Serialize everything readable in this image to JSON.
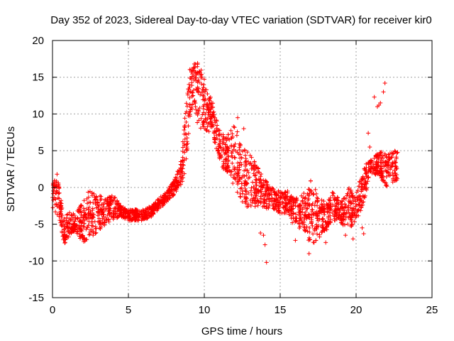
{
  "chart_data": {
    "type": "scatter",
    "title": "Day 352 of 2023, Sidereal Day-to-day VTEC variation (SDTVAR) for receiver kir0",
    "xlabel": "GPS time / hours",
    "ylabel": "SDTVAR / TECUs",
    "xlim": [
      0,
      25
    ],
    "ylim": [
      -15,
      20
    ],
    "x_ticks": [
      0,
      5,
      10,
      15,
      20,
      25
    ],
    "y_ticks": [
      -15,
      -10,
      -5,
      0,
      5,
      10,
      15,
      20
    ],
    "grid": true,
    "marker": "+",
    "series_color": "#ff0000",
    "series": [
      {
        "name": "SDTVAR",
        "envelope": [
          {
            "x": 0.0,
            "lo": -3.0,
            "hi": 0.5
          },
          {
            "x": 0.3,
            "lo": -4.0,
            "hi": 1.5
          },
          {
            "x": 0.5,
            "lo": -5.0,
            "hi": 0.5
          },
          {
            "x": 0.7,
            "lo": -8.0,
            "hi": -4.5
          },
          {
            "x": 1.0,
            "lo": -7.0,
            "hi": -3.0
          },
          {
            "x": 1.5,
            "lo": -6.0,
            "hi": -3.5
          },
          {
            "x": 2.0,
            "lo": -7.5,
            "hi": -2.0
          },
          {
            "x": 2.5,
            "lo": -7.0,
            "hi": 0.0
          },
          {
            "x": 3.0,
            "lo": -6.0,
            "hi": -1.0
          },
          {
            "x": 3.5,
            "lo": -5.0,
            "hi": -1.5
          },
          {
            "x": 4.0,
            "lo": -4.5,
            "hi": -1.0
          },
          {
            "x": 4.5,
            "lo": -4.0,
            "hi": -2.5
          },
          {
            "x": 5.0,
            "lo": -4.5,
            "hi": -3.0
          },
          {
            "x": 6.0,
            "lo": -4.5,
            "hi": -3.0
          },
          {
            "x": 6.5,
            "lo": -4.0,
            "hi": -2.5
          },
          {
            "x": 7.0,
            "lo": -3.0,
            "hi": -1.5
          },
          {
            "x": 7.5,
            "lo": -2.0,
            "hi": -0.5
          },
          {
            "x": 8.0,
            "lo": -1.0,
            "hi": 1.0
          },
          {
            "x": 8.5,
            "lo": 0.0,
            "hi": 4.0
          },
          {
            "x": 8.8,
            "lo": 3.0,
            "hi": 12.0
          },
          {
            "x": 9.0,
            "lo": 8.0,
            "hi": 16.5
          },
          {
            "x": 9.3,
            "lo": 12.0,
            "hi": 16.8
          },
          {
            "x": 9.6,
            "lo": 8.0,
            "hi": 17.0
          },
          {
            "x": 10.0,
            "lo": 7.0,
            "hi": 15.0
          },
          {
            "x": 10.5,
            "lo": 8.0,
            "hi": 12.0
          },
          {
            "x": 11.0,
            "lo": 3.0,
            "hi": 8.0
          },
          {
            "x": 11.5,
            "lo": 2.0,
            "hi": 7.0
          },
          {
            "x": 12.0,
            "lo": 0.0,
            "hi": 8.5
          },
          {
            "x": 12.5,
            "lo": -2.0,
            "hi": 6.0
          },
          {
            "x": 13.0,
            "lo": -3.0,
            "hi": 5.0
          },
          {
            "x": 13.5,
            "lo": -2.5,
            "hi": 3.0
          },
          {
            "x": 14.0,
            "lo": -3.0,
            "hi": 1.0
          },
          {
            "x": 14.5,
            "lo": -3.0,
            "hi": 0.0
          },
          {
            "x": 15.0,
            "lo": -3.5,
            "hi": -0.5
          },
          {
            "x": 15.5,
            "lo": -3.5,
            "hi": -0.5
          },
          {
            "x": 16.0,
            "lo": -5.0,
            "hi": -1.5
          },
          {
            "x": 16.5,
            "lo": -6.0,
            "hi": -1.0
          },
          {
            "x": 17.0,
            "lo": -8.0,
            "hi": 1.0
          },
          {
            "x": 17.5,
            "lo": -7.0,
            "hi": -1.0
          },
          {
            "x": 18.0,
            "lo": -6.0,
            "hi": -2.0
          },
          {
            "x": 18.5,
            "lo": -4.5,
            "hi": -0.5
          },
          {
            "x": 19.0,
            "lo": -5.0,
            "hi": -2.0
          },
          {
            "x": 19.5,
            "lo": -6.0,
            "hi": 0.0
          },
          {
            "x": 20.0,
            "lo": -5.0,
            "hi": -1.0
          },
          {
            "x": 20.5,
            "lo": -2.0,
            "hi": 3.0
          },
          {
            "x": 21.0,
            "lo": 2.0,
            "hi": 4.0
          },
          {
            "x": 21.5,
            "lo": 1.5,
            "hi": 5.0
          },
          {
            "x": 22.0,
            "lo": 0.0,
            "hi": 4.5
          },
          {
            "x": 22.5,
            "lo": 0.5,
            "hi": 5.0
          },
          {
            "x": 22.8,
            "lo": 1.0,
            "hi": 5.0
          }
        ],
        "outliers": [
          {
            "x": 12.2,
            "y": 9.5
          },
          {
            "x": 12.6,
            "y": 8.0
          },
          {
            "x": 13.7,
            "y": -6.2
          },
          {
            "x": 13.9,
            "y": -6.5
          },
          {
            "x": 14.0,
            "y": -7.8
          },
          {
            "x": 14.1,
            "y": -10.2
          },
          {
            "x": 15.5,
            "y": -3.0
          },
          {
            "x": 15.8,
            "y": -4.8
          },
          {
            "x": 16.0,
            "y": -7.2
          },
          {
            "x": 16.8,
            "y": -6.0
          },
          {
            "x": 16.9,
            "y": -9.0
          },
          {
            "x": 18.0,
            "y": -7.5
          },
          {
            "x": 19.3,
            "y": -6.5
          },
          {
            "x": 19.8,
            "y": -7.0
          },
          {
            "x": 20.4,
            "y": -5.5
          },
          {
            "x": 20.5,
            "y": -6.3
          },
          {
            "x": 20.8,
            "y": 7.4
          },
          {
            "x": 20.9,
            "y": 5.5
          },
          {
            "x": 21.2,
            "y": 12.3
          },
          {
            "x": 21.4,
            "y": 11.0
          },
          {
            "x": 21.6,
            "y": 11.5
          },
          {
            "x": 21.8,
            "y": 13.0
          },
          {
            "x": 21.9,
            "y": 14.2
          },
          {
            "x": 21.5,
            "y": 11.2
          },
          {
            "x": 0.3,
            "y": 1.8
          }
        ]
      }
    ]
  }
}
